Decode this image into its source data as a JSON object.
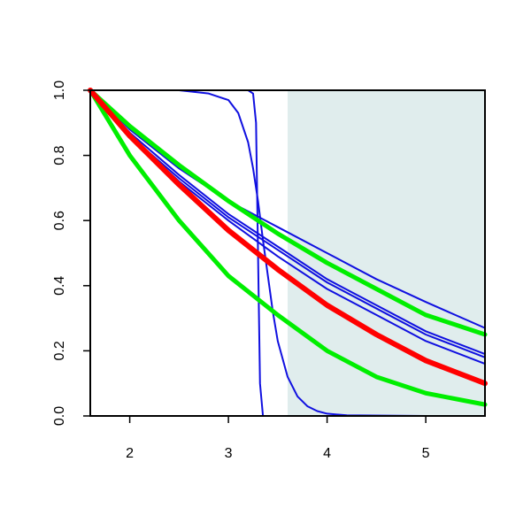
{
  "chart_data": {
    "type": "line",
    "title": "",
    "xlabel": "",
    "ylabel": "",
    "xlim": [
      1.6,
      5.6
    ],
    "ylim": [
      0.0,
      1.0
    ],
    "grid": false,
    "legend": "none",
    "x_ticks": [
      2,
      3,
      4,
      5
    ],
    "x_tick_labels": [
      "2",
      "3",
      "4",
      "5"
    ],
    "y_ticks": [
      0.0,
      0.2,
      0.4,
      0.6,
      0.8,
      1.0
    ],
    "y_tick_labels": [
      "0.0",
      "0.2",
      "0.4",
      "0.6",
      "0.8",
      "1.0"
    ],
    "shaded_region": {
      "x_from": 3.6,
      "x_to": 5.6,
      "color": "#e0eded"
    },
    "colors": {
      "blue": "#1010e0",
      "red": "#ff0000",
      "green": "#00ee00"
    },
    "series": [
      {
        "color": "blue",
        "width": 2,
        "x": [
          1.6,
          2,
          2.5,
          3,
          3.2,
          3.25,
          3.28,
          3.3,
          3.32,
          3.35,
          3.5,
          4,
          5,
          5.6
        ],
        "y": [
          1,
          1,
          1,
          1,
          1,
          0.99,
          0.9,
          0.5,
          0.1,
          0.0,
          0,
          0,
          0,
          0
        ]
      },
      {
        "color": "blue",
        "width": 2,
        "x": [
          1.6,
          2,
          2.5,
          2.8,
          3,
          3.1,
          3.2,
          3.25,
          3.3,
          3.35,
          3.4,
          3.45,
          3.5,
          3.6,
          3.7,
          3.8,
          3.9,
          4,
          4.2,
          5,
          5.6
        ],
        "y": [
          1,
          1,
          1,
          0.99,
          0.97,
          0.93,
          0.84,
          0.76,
          0.66,
          0.54,
          0.43,
          0.32,
          0.23,
          0.12,
          0.06,
          0.03,
          0.015,
          0.007,
          0.002,
          0,
          0
        ]
      },
      {
        "color": "blue",
        "width": 2,
        "x": [
          1.6,
          2,
          2.5,
          3,
          3.5,
          4,
          4.5,
          5,
          5.6
        ],
        "y": [
          1,
          0.88,
          0.76,
          0.66,
          0.58,
          0.5,
          0.42,
          0.35,
          0.27
        ]
      },
      {
        "color": "blue",
        "width": 2,
        "x": [
          1.6,
          2,
          2.5,
          3,
          3.5,
          4,
          4.5,
          5,
          5.6
        ],
        "y": [
          1,
          0.87,
          0.74,
          0.62,
          0.52,
          0.42,
          0.34,
          0.26,
          0.19
        ]
      },
      {
        "color": "blue",
        "width": 2,
        "x": [
          1.6,
          2,
          2.5,
          3,
          3.5,
          4,
          4.5,
          5,
          5.6
        ],
        "y": [
          1,
          0.86,
          0.73,
          0.61,
          0.51,
          0.41,
          0.33,
          0.25,
          0.18
        ]
      },
      {
        "color": "blue",
        "width": 2,
        "x": [
          1.6,
          2,
          2.5,
          3,
          3.5,
          4,
          4.5,
          5,
          5.6
        ],
        "y": [
          1,
          0.86,
          0.72,
          0.6,
          0.49,
          0.39,
          0.31,
          0.23,
          0.16
        ]
      },
      {
        "color": "green",
        "width": 5,
        "x": [
          1.6,
          2,
          2.5,
          3,
          3.5,
          4,
          4.5,
          5,
          5.6
        ],
        "y": [
          1,
          0.89,
          0.77,
          0.66,
          0.56,
          0.47,
          0.39,
          0.31,
          0.25
        ]
      },
      {
        "color": "green",
        "width": 5,
        "x": [
          1.6,
          2,
          2.5,
          3,
          3.5,
          4,
          4.5,
          5,
          5.6
        ],
        "y": [
          1,
          0.8,
          0.6,
          0.43,
          0.31,
          0.2,
          0.12,
          0.07,
          0.035
        ]
      },
      {
        "color": "red",
        "width": 6,
        "x": [
          1.6,
          2,
          2.5,
          3,
          3.5,
          4,
          4.5,
          5,
          5.6
        ],
        "y": [
          1,
          0.86,
          0.71,
          0.57,
          0.45,
          0.34,
          0.25,
          0.17,
          0.1
        ]
      }
    ]
  }
}
